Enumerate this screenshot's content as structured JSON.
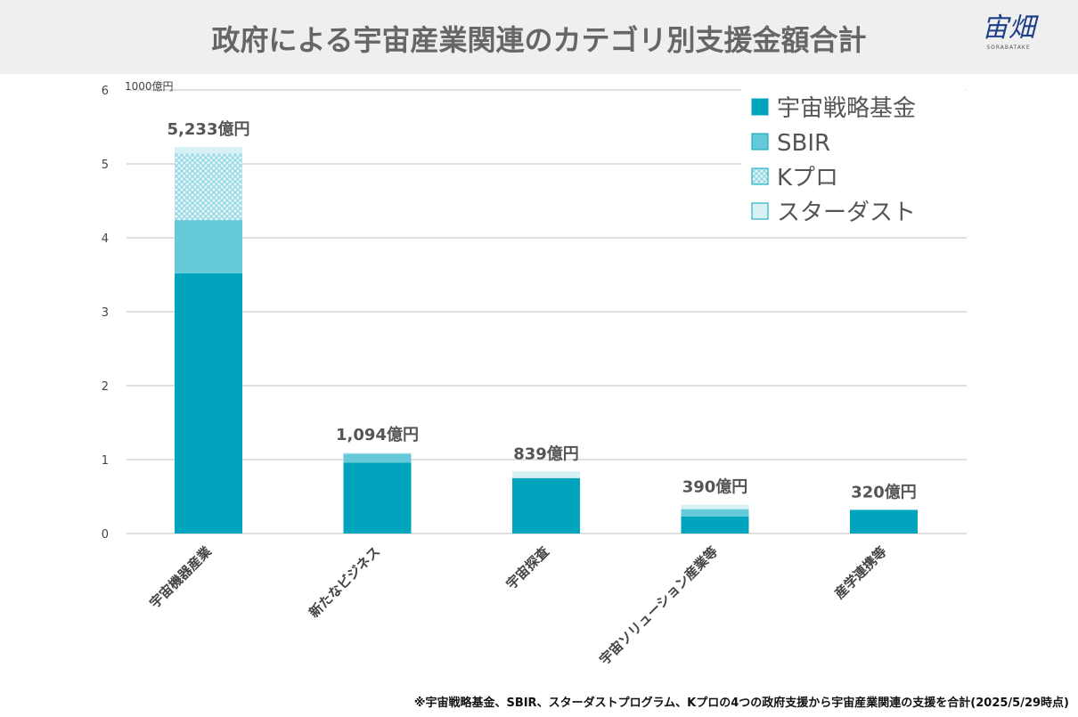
{
  "header": {
    "title": "政府による宇宙産業関連のカテゴリ別支援金額合計",
    "logo": "宙畑",
    "logo_sub": "SORABATAKE"
  },
  "footnote": "※宇宙戦略基金、SBIR、スターダストプログラム、Kプロの4つの政府支援から宇宙産業関連の支援を合計(2025/5/29時点)",
  "chart_data": {
    "type": "bar",
    "stacked": true,
    "ylabel": "1000億円",
    "ylim": [
      0,
      6
    ],
    "yticks": [
      0,
      1,
      2,
      3,
      4,
      5,
      6
    ],
    "grid": true,
    "legend": "top-right",
    "categories": [
      "宇宙機器産業",
      "新たなビジネス",
      "宇宙探査",
      "宇宙ソリューション産業等",
      "産学連携等"
    ],
    "series": [
      {
        "name": "宇宙戦略基金",
        "color": "#00a5bd",
        "values": [
          3.52,
          0.96,
          0.75,
          0.23,
          0.32
        ]
      },
      {
        "name": "SBIR",
        "color": "#66c9d9",
        "values": [
          0.72,
          0.12,
          0,
          0.1,
          0
        ]
      },
      {
        "name": "Kプロ",
        "color": "#a8e0ea",
        "pattern": "hatched",
        "values": [
          0.9,
          0,
          0,
          0,
          0
        ]
      },
      {
        "name": "スターダスト",
        "color": "#d8f1f5",
        "values": [
          0.09,
          0.014,
          0.09,
          0.06,
          0
        ]
      }
    ],
    "data_labels": [
      "5,233億円",
      "1,094億円",
      "839億円",
      "390億円",
      "320億円"
    ]
  }
}
